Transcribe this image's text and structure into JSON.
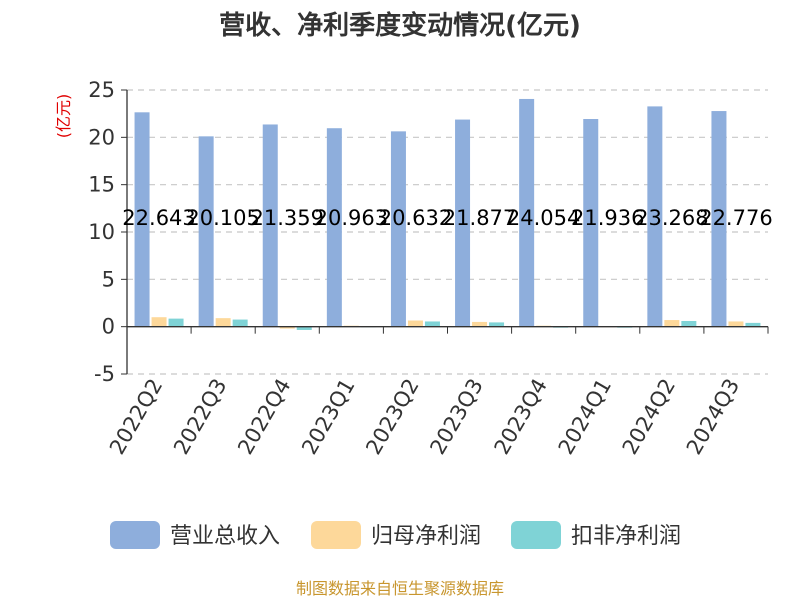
{
  "title": "营收、净利季度变动情况(亿元)",
  "source": "制图数据来自恒生聚源数据库",
  "chart_data": {
    "type": "bar",
    "ylabel": "(亿元)",
    "ylim": [
      -5,
      25
    ],
    "yticks": [
      -5,
      0,
      5,
      10,
      15,
      20,
      25
    ],
    "grid": true,
    "legend_position": "bottom",
    "categories": [
      "2022Q2",
      "2022Q3",
      "2022Q4",
      "2023Q1",
      "2023Q2",
      "2023Q3",
      "2023Q4",
      "2024Q1",
      "2024Q2",
      "2024Q3"
    ],
    "series": [
      {
        "name": "营业总收入",
        "color": "#8eaedc",
        "values": [
          22.643,
          20.105,
          21.359,
          20.963,
          20.632,
          21.877,
          24.054,
          21.936,
          23.268,
          22.776
        ]
      },
      {
        "name": "归母净利润",
        "color": "#fdd89a",
        "values": [
          1.0,
          0.9,
          -0.2,
          0.1,
          0.65,
          0.5,
          0.1,
          0.05,
          0.7,
          0.55
        ]
      },
      {
        "name": "扣非净利润",
        "color": "#7fd3d6",
        "values": [
          0.85,
          0.75,
          -0.35,
          0.05,
          0.55,
          0.45,
          -0.1,
          -0.05,
          0.6,
          0.4
        ]
      }
    ],
    "data_labels": [
      "22.643",
      "20.105",
      "21.359",
      "20.963",
      "20.632",
      "21.877",
      "24.054",
      "21.936",
      "23.268",
      "22.776"
    ]
  }
}
